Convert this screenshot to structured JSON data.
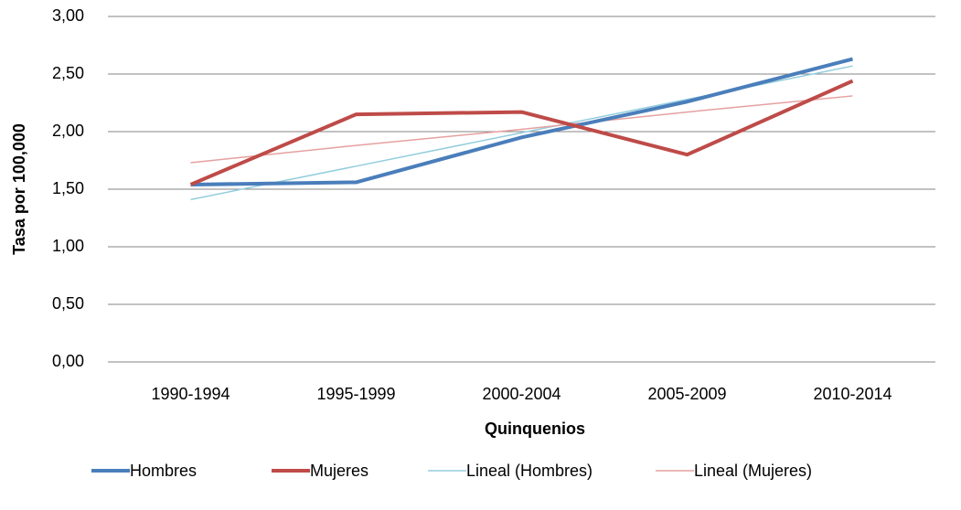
{
  "chart_data": {
    "type": "line",
    "x_label": "Quinquenios",
    "y_label": "Tasa por 100,000",
    "categories": [
      "1990-1994",
      "1995-1999",
      "2000-2004",
      "2005-2009",
      "2010-2014"
    ],
    "series": [
      {
        "name": "Hombres",
        "color": "#4a7ebb",
        "width": 4,
        "values": [
          1.54,
          1.56,
          1.95,
          2.26,
          2.63
        ]
      },
      {
        "name": "Mujeres",
        "color": "#be4b48",
        "width": 4,
        "values": [
          1.54,
          2.15,
          2.17,
          1.8,
          2.44
        ]
      },
      {
        "name": "Lineal (Hombres)",
        "color": "#93cddd",
        "width": 1.5,
        "values": [
          1.41,
          1.7,
          1.99,
          2.28,
          2.57
        ]
      },
      {
        "name": "Lineal (Mujeres)",
        "color": "#e6a0a0",
        "width": 1.5,
        "values": [
          1.73,
          1.88,
          2.02,
          2.17,
          2.31
        ]
      }
    ],
    "ylim": [
      0,
      3
    ],
    "yticks": [
      {
        "value": 0,
        "label": "0,00"
      },
      {
        "value": 0.5,
        "label": "0,50"
      },
      {
        "value": 1,
        "label": "1,00"
      },
      {
        "value": 1.5,
        "label": "1,50"
      },
      {
        "value": 2,
        "label": "2,00"
      },
      {
        "value": 2.5,
        "label": "2,50"
      },
      {
        "value": 3,
        "label": "3,00"
      }
    ],
    "grid": true,
    "legend": "bottom"
  }
}
